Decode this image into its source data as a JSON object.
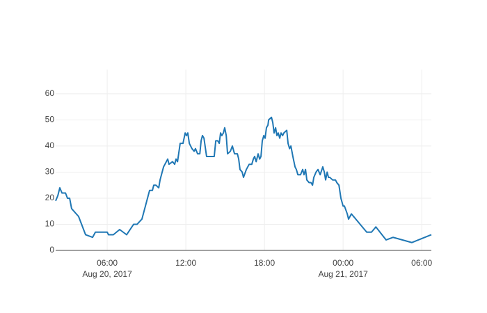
{
  "chart_data": {
    "type": "line",
    "x": [
      "2017-08-20 02:04",
      "2017-08-20 02:14",
      "2017-08-20 02:23",
      "2017-08-20 02:33",
      "2017-08-20 02:49",
      "2017-08-20 02:58",
      "2017-08-20 03:08",
      "2017-08-20 03:17",
      "2017-08-20 03:49",
      "2017-08-20 04:21",
      "2017-08-20 04:53",
      "2017-08-20 05:06",
      "2017-08-20 06:00",
      "2017-08-20 06:06",
      "2017-08-20 06:28",
      "2017-08-20 06:57",
      "2017-08-20 07:29",
      "2017-08-20 08:01",
      "2017-08-20 08:17",
      "2017-08-20 08:39",
      "2017-08-20 09:14",
      "2017-08-20 09:27",
      "2017-08-20 09:33",
      "2017-08-20 09:43",
      "2017-08-20 09:56",
      "2017-08-20 10:02",
      "2017-08-20 10:18",
      "2017-08-20 10:37",
      "2017-08-20 10:43",
      "2017-08-20 10:59",
      "2017-08-20 11:09",
      "2017-08-20 11:15",
      "2017-08-20 11:22",
      "2017-08-20 11:34",
      "2017-08-20 11:47",
      "2017-08-20 11:57",
      "2017-08-20 12:03",
      "2017-08-20 12:09",
      "2017-08-20 12:16",
      "2017-08-20 12:28",
      "2017-08-20 12:38",
      "2017-08-20 12:44",
      "2017-08-20 12:54",
      "2017-08-20 13:04",
      "2017-08-20 13:10",
      "2017-08-20 13:16",
      "2017-08-20 13:23",
      "2017-08-20 13:35",
      "2017-08-20 13:58",
      "2017-08-20 14:10",
      "2017-08-20 14:17",
      "2017-08-20 14:26",
      "2017-08-20 14:33",
      "2017-08-20 14:39",
      "2017-08-20 14:45",
      "2017-08-20 14:52",
      "2017-08-20 14:58",
      "2017-08-20 15:05",
      "2017-08-20 15:11",
      "2017-08-20 15:24",
      "2017-08-20 15:33",
      "2017-08-20 15:43",
      "2017-08-20 15:56",
      "2017-08-20 16:02",
      "2017-08-20 16:08",
      "2017-08-20 16:18",
      "2017-08-20 16:24",
      "2017-08-20 16:37",
      "2017-08-20 16:50",
      "2017-08-20 17:02",
      "2017-08-20 17:09",
      "2017-08-20 17:15",
      "2017-08-20 17:22",
      "2017-08-20 17:31",
      "2017-08-20 17:38",
      "2017-08-20 17:44",
      "2017-08-20 17:50",
      "2017-08-20 17:57",
      "2017-08-20 18:03",
      "2017-08-20 18:09",
      "2017-08-20 18:16",
      "2017-08-20 18:19",
      "2017-08-20 18:32",
      "2017-08-20 18:38",
      "2017-08-20 18:44",
      "2017-08-20 18:51",
      "2017-08-20 18:57",
      "2017-08-20 19:03",
      "2017-08-20 19:10",
      "2017-08-20 19:16",
      "2017-08-20 19:23",
      "2017-08-20 19:29",
      "2017-08-20 19:42",
      "2017-08-20 19:48",
      "2017-08-20 19:55",
      "2017-08-20 20:01",
      "2017-08-20 20:10",
      "2017-08-20 20:20",
      "2017-08-20 20:26",
      "2017-08-20 20:33",
      "2017-08-20 20:45",
      "2017-08-20 20:55",
      "2017-08-20 21:01",
      "2017-08-20 21:08",
      "2017-08-20 21:14",
      "2017-08-20 21:24",
      "2017-08-20 21:33",
      "2017-08-20 21:40",
      "2017-08-20 21:46",
      "2017-08-20 21:56",
      "2017-08-20 22:05",
      "2017-08-20 22:15",
      "2017-08-20 22:27",
      "2017-08-20 22:34",
      "2017-08-20 22:40",
      "2017-08-20 22:47",
      "2017-08-20 22:53",
      "2017-08-20 22:59",
      "2017-08-20 23:12",
      "2017-08-20 23:25",
      "2017-08-20 23:31",
      "2017-08-20 23:41",
      "2017-08-20 23:50",
      "2017-08-21 00:00",
      "2017-08-21 00:06",
      "2017-08-21 00:19",
      "2017-08-21 00:25",
      "2017-08-21 00:38",
      "2017-08-21 01:48",
      "2017-08-21 02:10",
      "2017-08-21 02:30",
      "2017-08-21 03:17",
      "2017-08-21 03:49",
      "2017-08-21 05:15",
      "2017-08-21 06:44"
    ],
    "series": [
      {
        "color": "#1f77b4",
        "values": [
          19,
          21,
          24,
          22,
          22,
          20,
          20,
          16,
          13,
          6,
          5,
          7,
          7,
          6,
          6,
          8,
          6,
          10,
          10,
          12,
          23,
          23,
          25,
          25,
          24,
          27,
          32,
          35,
          33,
          34,
          33,
          35,
          34,
          41,
          41,
          45,
          44,
          45,
          41,
          39,
          38,
          39,
          37,
          37,
          42,
          44,
          43,
          36,
          36,
          36,
          42,
          42,
          41,
          45,
          44,
          45,
          47,
          44,
          37,
          38,
          40,
          37,
          37,
          35,
          31,
          30,
          28,
          31,
          33,
          33,
          35,
          36,
          34,
          37,
          35,
          36,
          42,
          44,
          43,
          47,
          48,
          50,
          51,
          49,
          45,
          47,
          44,
          45,
          43,
          45,
          44,
          45,
          46,
          41,
          39,
          40,
          36,
          32,
          31,
          29,
          29,
          31,
          29,
          31,
          27,
          26,
          26,
          25,
          28,
          30,
          31,
          29,
          32,
          30,
          27,
          30,
          28,
          28,
          27,
          27,
          26,
          25,
          20,
          17,
          17,
          14,
          12,
          14,
          7,
          7,
          9,
          4,
          5,
          3,
          6
        ]
      }
    ],
    "xlim": [
      "2017-08-20 02:04",
      "2017-08-21 06:44"
    ],
    "ylim": [
      0,
      69.3
    ],
    "yticks": [
      0,
      10,
      20,
      30,
      40,
      50,
      60
    ],
    "xticks": [
      {
        "value": "2017-08-20 06:00",
        "label": "06:00",
        "sublabel": "Aug 20, 2017"
      },
      {
        "value": "2017-08-20 12:00",
        "label": "12:00"
      },
      {
        "value": "2017-08-20 18:00",
        "label": "18:00"
      },
      {
        "value": "2017-08-21 00:00",
        "label": "00:00",
        "sublabel": "Aug 21, 2017"
      },
      {
        "value": "2017-08-21 06:00",
        "label": "06:00"
      }
    ],
    "grid": true
  }
}
